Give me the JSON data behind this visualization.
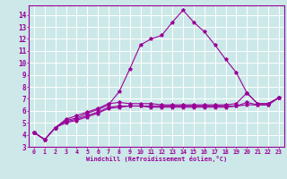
{
  "title": "",
  "xlabel": "Windchill (Refroidissement éolien,°C)",
  "ylabel": "",
  "xlim": [
    -0.5,
    23.5
  ],
  "ylim": [
    3.0,
    14.8
  ],
  "bg_color": "#cce8e8",
  "line_color": "#990099",
  "grid_color": "#ffffff",
  "lines": [
    [
      0,
      4.2,
      1,
      3.6,
      2,
      4.6,
      3,
      5.3,
      4,
      5.6,
      5,
      5.9,
      6,
      6.2,
      7,
      6.6,
      8,
      6.7,
      9,
      6.6,
      10,
      6.6,
      11,
      6.6,
      12,
      6.5,
      13,
      6.5,
      14,
      6.5,
      15,
      6.5,
      16,
      6.5,
      17,
      6.5,
      18,
      6.5,
      19,
      6.6,
      20,
      7.5,
      21,
      6.6,
      22,
      6.6,
      23,
      7.1
    ],
    [
      0,
      4.2,
      1,
      3.6,
      2,
      4.6,
      3,
      5.1,
      4,
      5.3,
      5,
      5.6,
      6,
      5.9,
      7,
      6.3,
      8,
      6.4,
      9,
      6.4,
      10,
      6.4,
      11,
      6.3,
      12,
      6.3,
      13,
      6.3,
      14,
      6.3,
      15,
      6.3,
      16,
      6.3,
      17,
      6.3,
      18,
      6.3,
      19,
      6.4,
      20,
      6.7,
      21,
      6.5,
      22,
      6.5,
      23,
      7.1
    ],
    [
      0,
      4.2,
      1,
      3.6,
      2,
      4.6,
      3,
      5.0,
      4,
      5.2,
      5,
      5.5,
      6,
      5.8,
      7,
      6.2,
      8,
      6.3,
      9,
      6.4,
      10,
      6.4,
      11,
      6.4,
      12,
      6.4,
      13,
      6.4,
      14,
      6.4,
      15,
      6.4,
      16,
      6.4,
      17,
      6.4,
      18,
      6.4,
      19,
      6.4,
      20,
      6.5,
      21,
      6.5,
      22,
      6.5,
      23,
      7.1
    ],
    [
      0,
      4.2,
      1,
      3.6,
      2,
      4.6,
      3,
      5.2,
      4,
      5.4,
      5,
      5.8,
      6,
      6.1,
      7,
      6.5,
      8,
      7.6,
      9,
      9.5,
      10,
      11.5,
      11,
      12.0,
      12,
      12.3,
      13,
      13.4,
      14,
      14.4,
      15,
      13.4,
      16,
      12.6,
      17,
      11.5,
      18,
      10.3,
      19,
      9.2,
      20,
      7.5,
      21,
      6.6,
      22,
      6.6,
      23,
      7.1
    ]
  ],
  "yticks": [
    3,
    4,
    5,
    6,
    7,
    8,
    9,
    10,
    11,
    12,
    13,
    14
  ],
  "xticks": [
    0,
    1,
    2,
    3,
    4,
    5,
    6,
    7,
    8,
    9,
    10,
    11,
    12,
    13,
    14,
    15,
    16,
    17,
    18,
    19,
    20,
    21,
    22,
    23
  ]
}
